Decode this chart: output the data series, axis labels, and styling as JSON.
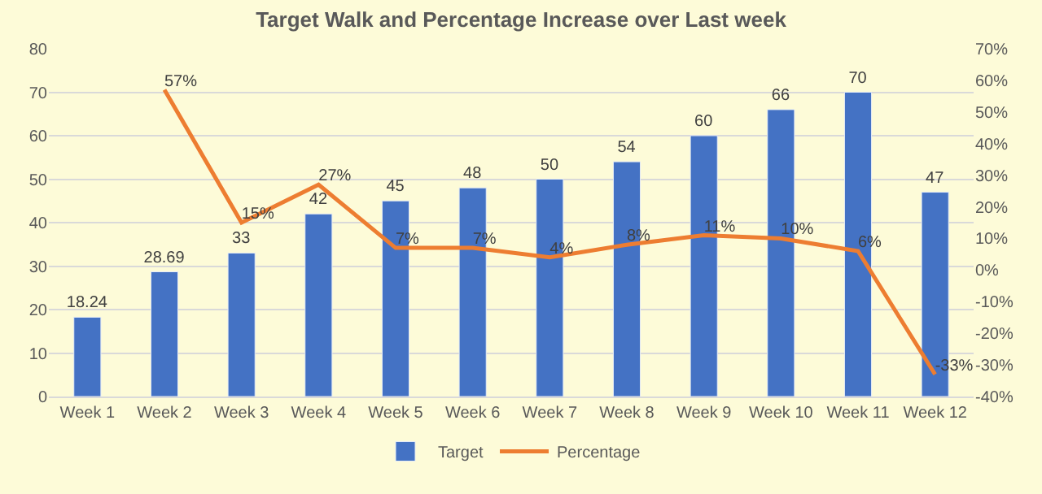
{
  "chart_data": {
    "type": "bar",
    "title": "Target Walk and Percentage Increase over Last week",
    "categories": [
      "Week 1",
      "Week 2",
      "Week 3",
      "Week 4",
      "Week 5",
      "Week 6",
      "Week 7",
      "Week 8",
      "Week 9",
      "Week 10",
      "Week 11",
      "Week 12"
    ],
    "series": [
      {
        "name": "Target",
        "color": "#4472c4",
        "values": [
          18.24,
          28.69,
          33,
          42,
          45,
          48,
          50,
          54,
          60,
          66,
          70,
          47
        ],
        "value_labels": [
          "18.24",
          "28.69",
          "33",
          "42",
          "45",
          "48",
          "50",
          "54",
          "60",
          "66",
          "70",
          "47"
        ]
      },
      {
        "name": "Percentage",
        "type": "line",
        "axis": "y2",
        "color": "#ed7d31",
        "values": [
          null,
          57,
          15,
          27,
          7,
          7,
          4,
          8,
          11,
          10,
          6,
          -33
        ],
        "value_labels": [
          null,
          "57%",
          "15%",
          "27%",
          "7%",
          "7%",
          "4%",
          "8%",
          "11%",
          "10%",
          "6%",
          "-33%"
        ]
      }
    ],
    "ylim": [
      0,
      80
    ],
    "yticks": [
      0,
      10,
      20,
      30,
      40,
      50,
      60,
      70,
      80
    ],
    "y2lim": [
      -40,
      70
    ],
    "y2ticks": [
      {
        "value": -40,
        "label": "-40%"
      },
      {
        "value": -30,
        "label": "-30%"
      },
      {
        "value": -20,
        "label": "-20%"
      },
      {
        "value": -10,
        "label": "-10%"
      },
      {
        "value": 0,
        "label": "0%"
      },
      {
        "value": 10,
        "label": "10%"
      },
      {
        "value": 20,
        "label": "20%"
      },
      {
        "value": 30,
        "label": "30%"
      },
      {
        "value": 40,
        "label": "40%"
      },
      {
        "value": 50,
        "label": "50%"
      },
      {
        "value": 60,
        "label": "60%"
      },
      {
        "value": 70,
        "label": "70%"
      }
    ],
    "grid": "y",
    "legend": "bottom",
    "marker": "none",
    "line_style": "solid"
  }
}
